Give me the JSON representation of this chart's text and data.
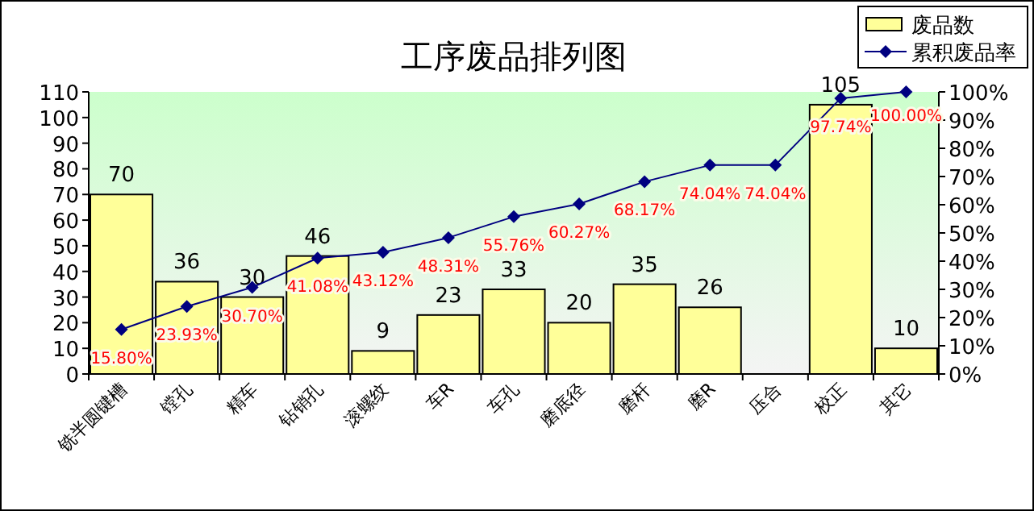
{
  "chart_data": {
    "type": "bar",
    "title": "工序废品排列图",
    "categories": [
      "铣半圆键槽",
      "镗孔",
      "精车",
      "钻销孔",
      "滚螺纹",
      "车R",
      "车孔",
      "磨底径",
      "磨杆",
      "磨R",
      "压合",
      "校正",
      "其它"
    ],
    "series": [
      {
        "name": "废品数",
        "color": "#ffff99",
        "values": [
          70,
          36,
          30,
          46,
          9,
          23,
          33,
          20,
          35,
          26,
          0,
          105,
          10
        ],
        "value_labels": [
          "70",
          "36",
          "30",
          "46",
          "9",
          "23",
          "33",
          "20",
          "35",
          "26",
          null,
          "105",
          "10"
        ]
      },
      {
        "name": "累积废品率",
        "type": "line",
        "axis": "y2",
        "color": "#000080",
        "marker": "diamond",
        "values": [
          15.8,
          23.93,
          30.7,
          41.08,
          43.12,
          48.31,
          55.76,
          60.27,
          68.17,
          74.04,
          74.04,
          97.74,
          100.0
        ],
        "value_labels": [
          "15.80%",
          "23.93%",
          "30.70%",
          "41.08%",
          "43.12%",
          "48.31%",
          "55.76%",
          "60.27%",
          "68.17%",
          "74.04%",
          "74.04%",
          "97.74%",
          "100.00%"
        ]
      }
    ],
    "ylim": [
      0,
      110
    ],
    "yticks": [
      0,
      10,
      20,
      30,
      40,
      50,
      60,
      70,
      80,
      90,
      100,
      110
    ],
    "y2lim": [
      0,
      100
    ],
    "y2ticks": [
      {
        "value": 0,
        "label": "0%"
      },
      {
        "value": 10,
        "label": "10%"
      },
      {
        "value": 20,
        "label": "20%"
      },
      {
        "value": 30,
        "label": "30%"
      },
      {
        "value": 40,
        "label": "40%"
      },
      {
        "value": 50,
        "label": "50%"
      },
      {
        "value": 60,
        "label": "60%"
      },
      {
        "value": 70,
        "label": "70%"
      },
      {
        "value": 80,
        "label": "80%"
      },
      {
        "value": 90,
        "label": "90%"
      },
      {
        "value": 100,
        "label": "100%"
      }
    ],
    "grid": false,
    "legend": "top right"
  }
}
